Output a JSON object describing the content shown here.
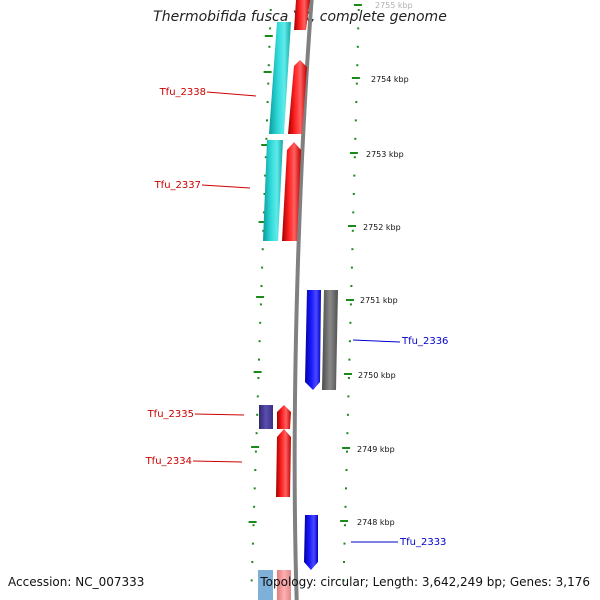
{
  "header": {
    "title": "Thermobifida fusca YX, complete genome"
  },
  "footer": {
    "accession": "Accession: NC_007333",
    "topology": "Topology: circular; Length: 3,642,249 bp; Genes: 3,176"
  },
  "colors": {
    "forward_cds": "#ff0000",
    "reverse_cds": "#0000ff",
    "cyan_feature": "#20c8c8",
    "gray_feature": "#6e6e6e",
    "purple_feature": "#4b3f9a",
    "ticks": "#1a8a1a",
    "backbone": "#808080"
  },
  "ruler": {
    "kbp_labels": [
      "2755 kbp",
      "2754 kbp",
      "2753 kbp",
      "2752 kbp",
      "2751 kbp",
      "2750 kbp",
      "2749 kbp",
      "2748 kbp"
    ]
  },
  "genes": {
    "labels": [
      "Tfu_2338",
      "Tfu_2337",
      "Tfu_2336",
      "Tfu_2335",
      "Tfu_2334",
      "Tfu_2333"
    ]
  }
}
